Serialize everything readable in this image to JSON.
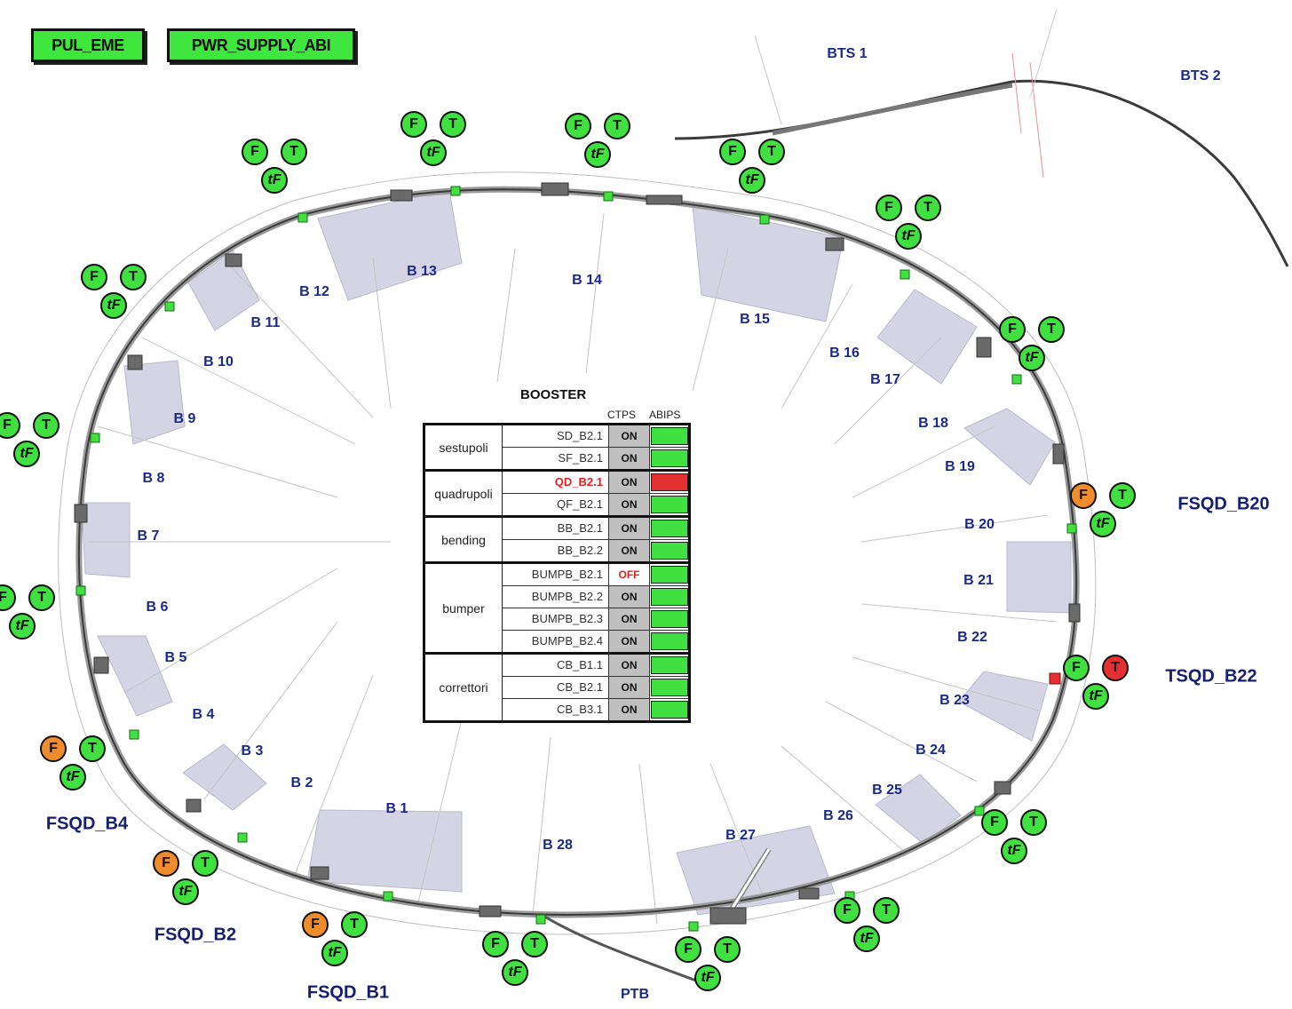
{
  "buttons": {
    "pul_eme": "PUL_EME",
    "pwr_supply_abi": "PWR_SUPPLY_ABI"
  },
  "colors": {
    "ok": "#40e040",
    "warning": "#f08c2c",
    "alarm": "#e43030",
    "label": "#1a2a8a",
    "section_fill": "#d4d4e4"
  },
  "sections": [
    "B 1",
    "B 2",
    "B 3",
    "B 4",
    "B 5",
    "B 6",
    "B 7",
    "B 8",
    "B 9",
    "B 10",
    "B 11",
    "B 12",
    "B 13",
    "B 14",
    "B 15",
    "B 16",
    "B 17",
    "B 18",
    "B 19",
    "B 20",
    "B 21",
    "B 22",
    "B 23",
    "B 24",
    "B 25",
    "B 26",
    "B 27",
    "B 28"
  ],
  "transfer_lines": [
    "BTS 1",
    "BTS 2",
    "PTB"
  ],
  "magnet_labels": [
    "FSQD_B20",
    "TSQD_B22",
    "FSQD_B4",
    "FSQD_B2",
    "FSQD_B1"
  ],
  "indicator_letters": {
    "fault": "F",
    "temperature": "T",
    "thermal_fault": "tF"
  },
  "indicators": [
    {
      "name": "FSQD_B1",
      "f": "orange",
      "t": "green",
      "tf": "green"
    },
    {
      "name": "FSQD_B2",
      "f": "orange",
      "t": "green",
      "tf": "green"
    },
    {
      "name": "FSQD_B4",
      "f": "orange",
      "t": "green",
      "tf": "green"
    },
    {
      "name": "FSQD_B20",
      "f": "orange",
      "t": "green",
      "tf": "green"
    },
    {
      "name": "TSQD_B22",
      "f": "green",
      "t": "red",
      "tf": "green"
    },
    {
      "name": "",
      "f": "green",
      "t": "green",
      "tf": "green"
    }
  ],
  "panel": {
    "title": "BOOSTER",
    "col_ctps": "CTPS",
    "col_abips": "ABIPS",
    "groups": [
      {
        "name": "sestupoli",
        "rows": [
          {
            "name": "SD_B2.1",
            "ctps": "ON",
            "abips": "green"
          },
          {
            "name": "SF_B2.1",
            "ctps": "ON",
            "abips": "green"
          }
        ]
      },
      {
        "name": "quadrupoli",
        "rows": [
          {
            "name": "QD_B2.1",
            "ctps": "ON",
            "abips": "red"
          },
          {
            "name": "QF_B2.1",
            "ctps": "ON",
            "abips": "green"
          }
        ]
      },
      {
        "name": "bending",
        "rows": [
          {
            "name": "BB_B2.1",
            "ctps": "ON",
            "abips": "green"
          },
          {
            "name": "BB_B2.2",
            "ctps": "ON",
            "abips": "green"
          }
        ]
      },
      {
        "name": "bumper",
        "rows": [
          {
            "name": "BUMPB_B2.1",
            "ctps": "OFF",
            "abips": "green"
          },
          {
            "name": "BUMPB_B2.2",
            "ctps": "ON",
            "abips": "green"
          },
          {
            "name": "BUMPB_B2.3",
            "ctps": "ON",
            "abips": "green"
          },
          {
            "name": "BUMPB_B2.4",
            "ctps": "ON",
            "abips": "green"
          }
        ]
      },
      {
        "name": "correttori",
        "rows": [
          {
            "name": "CB_B1.1",
            "ctps": "ON",
            "abips": "green"
          },
          {
            "name": "CB_B2.1",
            "ctps": "ON",
            "abips": "green"
          },
          {
            "name": "CB_B3.1",
            "ctps": "ON",
            "abips": "green"
          }
        ]
      }
    ]
  }
}
